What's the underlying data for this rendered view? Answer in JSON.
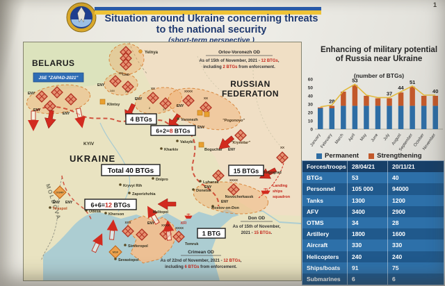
{
  "page_number": "1",
  "header": {
    "title_line1": "Situation around Ukraine concerning threats",
    "title_line2": "to the national security",
    "subtitle": "(short-term perspective )"
  },
  "map": {
    "countries": {
      "belarus": "BELARUS",
      "russia_1": "RUSSIAN",
      "russia_2": "FEDERATION",
      "ukraine": "UKRAINE",
      "moldova": "MOLDOVA"
    },
    "zapad_badge": "JSE \"ZAPAD-2021\"",
    "eny": "ENY",
    "cmd": "CMD",
    "ogrf": "OGRF",
    "msf": "MSF",
    "kfl": "KFl",
    "cities": {
      "yelnya": "Yelnya",
      "klintsy": "Klintsy",
      "kyiv": "KYIV",
      "kharkiv": "Kharkiv",
      "valuyki": "Valuyki",
      "voronezh": "Voronezh",
      "pogonovo": "\"Pogonovo\"",
      "boguchar": "Boguchar",
      "krymitar": "\"Krymitar\"",
      "volgograd": "Volgograd",
      "luhansk": "Luhansk",
      "donetsk": "Donetsk",
      "dnipro": "Dnipro",
      "kryvyi_rih": "Kryvyi Rih",
      "zaporizhzhia": "Zaporizhzhia",
      "kherson": "Kherson",
      "odesa": "Odesa",
      "melitopol": "Melitopol",
      "tiraspol": "Tiraspol",
      "simferopol": "Simferopol",
      "sevastopol": "Sevastopol",
      "novocherkassk": "Novocherkassk",
      "rostov": "Rostov-on-Don",
      "temruk": "Temruk"
    },
    "btg_boxes": {
      "b4": "4 BTGs",
      "b8_black": "6+2=",
      "b8_red": "8",
      "b8_tail": " BTGs",
      "total": "Total 40 BTGs",
      "b15": "15 BTGs",
      "b12_black": "6+6=",
      "b12_red": "12",
      "b12_tail": " BTGs",
      "b1": "1 BTG"
    },
    "od_notes": {
      "orlov": {
        "title": "Orlov-Voronezh OD",
        "l1_black": "As of 15th of November, 2021 - ",
        "l1_red": "12 BTGs",
        "l1_tail": ",",
        "l2_black": "including ",
        "l2_red": "2 BTGs",
        "l2_tail": " from enforcement."
      },
      "don": {
        "title": "Don OD",
        "l1": "As of 15th of November,",
        "l2_black": "2021 - ",
        "l2_red": "15 BTGs",
        "l2_tail": "."
      },
      "crimean": {
        "title": "Crimean OD",
        "l1_black": "As of 22nd of November, 2021 - ",
        "l1_red": "12 BTGs",
        "l1_tail": ",",
        "l2_black": "including ",
        "l2_red": "6 BTGs",
        "l2_tail": " from enforcement."
      }
    },
    "landing_squadron": {
      "l1": "Landing",
      "l2": "ships",
      "l3": "squadron"
    }
  },
  "chart": {
    "title": "Enhancing of military potential of Russia near Ukraine",
    "subtitle": "(number of BTGs)"
  },
  "chart_data": {
    "type": "bar",
    "stacked": true,
    "title": "Enhancing of military potential of Russia near Ukraine",
    "subtitle": "(number of BTGs)",
    "categories": [
      "January",
      "February",
      "March",
      "April",
      "May",
      "June",
      "July",
      "August",
      "September",
      "October",
      "November"
    ],
    "series": [
      {
        "name": "Permanent",
        "values": [
          25,
          25,
          28,
          28,
          28,
          28,
          28,
          28,
          28,
          28,
          28
        ]
      },
      {
        "name": "Strengthening",
        "values": [
          1,
          3,
          17,
          25,
          12,
          9,
          9,
          16,
          23,
          12,
          12
        ]
      }
    ],
    "totals": [
      26,
      28,
      45,
      53,
      40,
      37,
      37,
      44,
      51,
      40,
      40
    ],
    "point_labels": [
      null,
      "28",
      null,
      "53",
      null,
      null,
      "37",
      "44",
      "51",
      null,
      "40"
    ],
    "line_overlay": true,
    "legend": [
      "Permanent",
      "Strengthening"
    ],
    "legend_position": "bottom",
    "ylim": [
      0,
      60
    ],
    "yticks": [
      0,
      10,
      20,
      30,
      40,
      50,
      60
    ],
    "grid": false,
    "colors": {
      "permanent": "#2e6da4",
      "strengthening": "#c2592b",
      "line": "#e2b93e"
    }
  },
  "table": {
    "columns": [
      "Forces/troops",
      "28/04/21",
      "20/11/21"
    ],
    "rows": [
      {
        "name": "BTGs",
        "v1": "53",
        "v2": "40"
      },
      {
        "name": "Personnel",
        "v1": "105 000",
        "v2": "94000"
      },
      {
        "name": "Tanks",
        "v1": "1300",
        "v2": "1200"
      },
      {
        "name": "AFV",
        "v1": "3400",
        "v2": "2900"
      },
      {
        "name": "OTMS",
        "v1": "34",
        "v2": "28"
      },
      {
        "name": "Artillery",
        "v1": "1800",
        "v2": "1600"
      },
      {
        "name": "Aircraft",
        "v1": "330",
        "v2": "330"
      },
      {
        "name": "Helicopters",
        "v1": "240",
        "v2": "240"
      },
      {
        "name": "Ships/boats",
        "v1": "91",
        "v2": "75"
      },
      {
        "name": "Submarines",
        "v1": "6",
        "v2": "6"
      }
    ]
  }
}
